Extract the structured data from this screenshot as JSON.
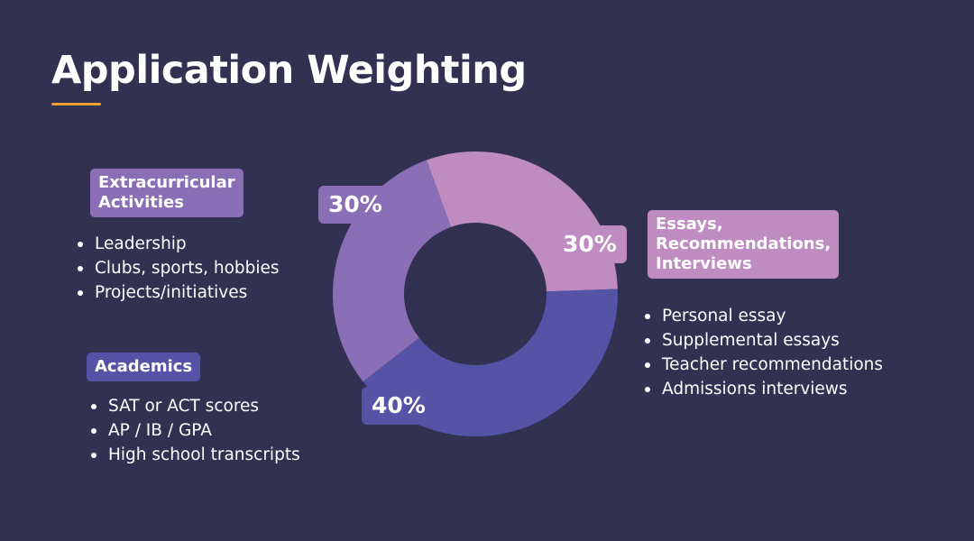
{
  "title": "Application Weighting",
  "colors": {
    "background": "#333152",
    "accent": "#f0a030",
    "extracurricular": "#8a6fb6",
    "essays": "#bf8cc1",
    "academics": "#5453a5"
  },
  "chart_data": {
    "type": "pie",
    "style": "donut",
    "title": "Application Weighting",
    "slices": [
      {
        "label": "Essays, Recommendations, Interviews",
        "value": 30,
        "display": "30%",
        "color": "#bf8cc1"
      },
      {
        "label": "Academics",
        "value": 40,
        "display": "40%",
        "color": "#5453a5"
      },
      {
        "label": "Extracurricular Activities",
        "value": 30,
        "display": "30%",
        "color": "#8a6fb6"
      }
    ]
  },
  "categories": {
    "extracurricular": {
      "label_line1": "Extracurricular",
      "label_line2": "Activities",
      "items": [
        "Leadership",
        "Clubs, sports, hobbies",
        "Projects/initiatives"
      ]
    },
    "academics": {
      "label": "Academics",
      "items": [
        "SAT or ACT scores",
        "AP / IB / GPA",
        "High school transcripts"
      ]
    },
    "essays": {
      "label_line1": "Essays,",
      "label_line2": "Recommendations,",
      "label_line3": "Interviews",
      "items": [
        "Personal essay",
        "Supplemental essays",
        "Teacher recommendations",
        "Admissions interviews"
      ]
    }
  }
}
